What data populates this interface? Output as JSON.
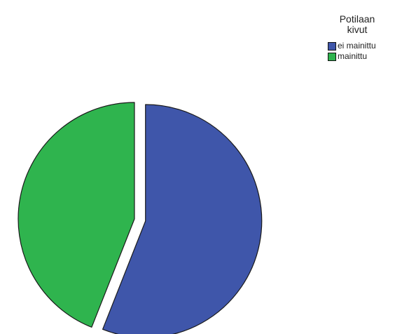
{
  "chart_data": {
    "type": "pie",
    "legend": {
      "title_lines": [
        "Potilaan",
        "kivut"
      ],
      "placement": "top-right"
    },
    "slices": [
      {
        "label": "ei mainittu",
        "value": 56,
        "color": "#3F56AA",
        "exploded": true
      },
      {
        "label": "mainittu",
        "value": 44,
        "color": "#2FB44E",
        "exploded": false
      }
    ]
  }
}
